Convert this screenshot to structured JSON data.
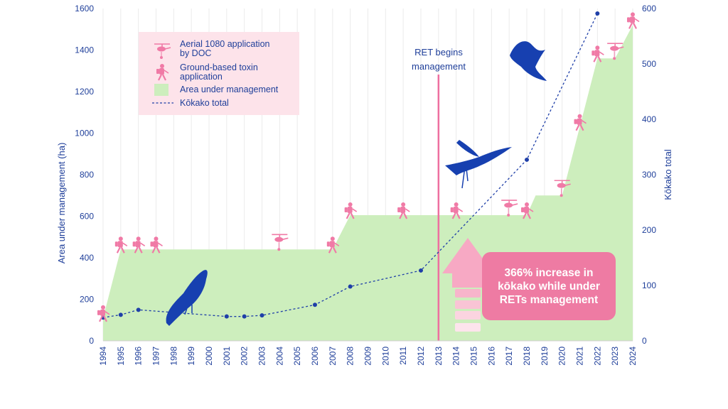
{
  "chart_data": {
    "type": "area",
    "x_categories": [
      "1994",
      "1995",
      "1996",
      "1997",
      "1998",
      "1999",
      "2000",
      "2001",
      "2002",
      "2003",
      "2004",
      "2005",
      "2006",
      "2007",
      "2008",
      "2009",
      "2010",
      "2011",
      "2012",
      "2013",
      "2014",
      "2015",
      "2016",
      "2017",
      "2018",
      "2019",
      "2020",
      "2021",
      "2022",
      "2023",
      "2024"
    ],
    "left_axis": {
      "label": "Area under management (ha)",
      "ylim": [
        0,
        1600
      ],
      "ticks": [
        0,
        200,
        400,
        600,
        800,
        1000,
        1200,
        1400,
        1600
      ]
    },
    "right_axis": {
      "label": "Kōkako total",
      "ylim": [
        0,
        600
      ],
      "ticks": [
        0,
        100,
        200,
        300,
        400,
        500,
        600
      ]
    },
    "series": [
      {
        "name": "Area under management",
        "kind": "area",
        "axis": "left",
        "color": "#cdeebd",
        "points": [
          {
            "x": "1994",
            "y": 110
          },
          {
            "x": "1995",
            "y": 440
          },
          {
            "x": "2007",
            "y": 440
          },
          {
            "x": "2008",
            "y": 605
          },
          {
            "x": "2018",
            "y": 605
          },
          {
            "x": "2018.5",
            "y": 700
          },
          {
            "x": "2020",
            "y": 700
          },
          {
            "x": "2022",
            "y": 1360
          },
          {
            "x": "2023",
            "y": 1360
          },
          {
            "x": "2024",
            "y": 1520
          }
        ]
      },
      {
        "name": "Kōkako total",
        "kind": "dashed-line",
        "axis": "right",
        "color": "#1f3fa8",
        "points": [
          {
            "x": "1994",
            "y": 42
          },
          {
            "x": "1995",
            "y": 47
          },
          {
            "x": "1996",
            "y": 56
          },
          {
            "x": "2001",
            "y": 44
          },
          {
            "x": "2002",
            "y": 44
          },
          {
            "x": "2003",
            "y": 46
          },
          {
            "x": "2006",
            "y": 65
          },
          {
            "x": "2008",
            "y": 98
          },
          {
            "x": "2012",
            "y": 127
          },
          {
            "x": "2018",
            "y": 327
          },
          {
            "x": "2022",
            "y": 591
          }
        ]
      }
    ],
    "ret_line": {
      "year": 2013,
      "label": [
        "RET begins",
        "management"
      ],
      "color": "#ee6fa0"
    },
    "aerial_1080_years": [
      2004,
      2017,
      2020,
      2023
    ],
    "ground_toxin_years": [
      1994,
      1995,
      1996,
      1997,
      2007,
      2008,
      2011,
      2014,
      2018,
      2021,
      2022,
      2024
    ],
    "legend": {
      "placement": "top-left",
      "items": [
        {
          "label_lines": [
            "Aerial 1080 application",
            "by DOC"
          ],
          "icon": "helicopter-icon"
        },
        {
          "label_lines": [
            "Ground-based toxin",
            "application"
          ],
          "icon": "person-spraying-icon"
        },
        {
          "label_lines": [
            "Area under management"
          ],
          "icon": "green-swatch"
        },
        {
          "label_lines": [
            "Kōkako total"
          ],
          "icon": "dashed-line"
        }
      ]
    },
    "callout": {
      "text": "366% increase in kōkako while under RETs management",
      "color": "#ee7ba3"
    },
    "grid": "vertical",
    "colors": {
      "axis_text": "#1f3f9a",
      "pink": "#f07aa6",
      "area": "#cdeebd",
      "line": "#1f3fa8"
    }
  }
}
